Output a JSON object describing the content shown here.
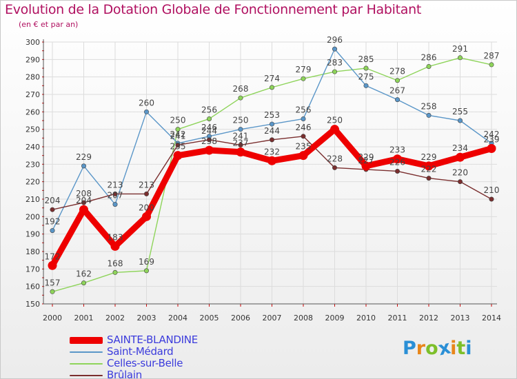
{
  "header": {
    "title": "Evolution de la Dotation Globale de Fonctionnement par Habitant",
    "subtitle": "(en € et par an)"
  },
  "chart_data": {
    "type": "line",
    "title": "Evolution de la Dotation Globale de Fonctionnement par Habitant",
    "subtitle": "(en € et par an)",
    "xlabel": "",
    "ylabel": "",
    "x": [
      2000,
      2001,
      2002,
      2003,
      2004,
      2005,
      2006,
      2007,
      2008,
      2009,
      2010,
      2011,
      2012,
      2013,
      2014
    ],
    "ylim": [
      150,
      300
    ],
    "yticks": [
      150,
      160,
      170,
      180,
      190,
      200,
      210,
      220,
      230,
      240,
      250,
      260,
      270,
      280,
      290,
      300
    ],
    "grid": true,
    "legend_position": "bottom-left",
    "series": [
      {
        "name": "SAINTE-BLANDINE",
        "color": "#ee0000",
        "values": [
          172,
          204,
          183,
          200,
          235,
          238,
          237,
          232,
          235,
          250,
          229,
          233,
          229,
          234,
          239
        ]
      },
      {
        "name": "Saint-Médard",
        "color": "#5a96c8",
        "values": [
          192,
          229,
          207,
          260,
          242,
          246,
          250,
          253,
          256,
          296,
          275,
          267,
          258,
          255,
          242
        ]
      },
      {
        "name": "Celles-sur-Belle",
        "color": "#8ed45a",
        "values": [
          157,
          162,
          168,
          169,
          250,
          256,
          268,
          274,
          279,
          283,
          285,
          278,
          286,
          291,
          287
        ]
      },
      {
        "name": "Brûlain",
        "color": "#7a2e2e",
        "values": [
          204,
          208,
          213,
          213,
          241,
          244,
          241,
          244,
          246,
          228,
          227,
          226,
          222,
          220,
          210
        ]
      }
    ]
  },
  "logo": {
    "letters": [
      "P",
      "r",
      "o",
      "x",
      "i",
      "t",
      "i"
    ],
    "colors": [
      "#2a8fd6",
      "#e8861a",
      "#7dbf2a",
      "#2a8fd6",
      "#e8861a",
      "#7dbf2a",
      "#2a8fd6"
    ]
  }
}
